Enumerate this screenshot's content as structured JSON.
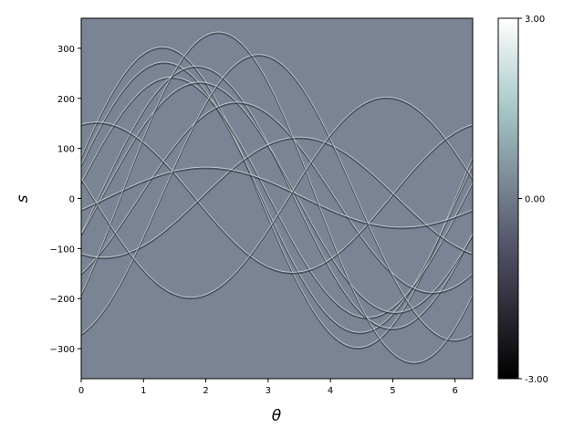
{
  "chart_data": {
    "type": "heatmap",
    "title": "",
    "xlabel": "θ",
    "ylabel": "s",
    "xlim": [
      0,
      6.283
    ],
    "ylim": [
      -360,
      360
    ],
    "x_ticks": [
      0,
      1,
      2,
      3,
      4,
      5,
      6
    ],
    "x_tick_labels": [
      "0",
      "1",
      "2",
      "3",
      "4",
      "5",
      "6"
    ],
    "y_ticks": [
      -300,
      -200,
      -100,
      0,
      100,
      200,
      300
    ],
    "y_tick_labels": [
      "−300",
      "−200",
      "−100",
      "0",
      "100",
      "200",
      "300"
    ],
    "colormap": "bone",
    "colorbar": {
      "range": [
        -3.0,
        3.0
      ],
      "ticks": [
        -3.0,
        0.0,
        3.0
      ],
      "tick_labels": [
        "-3.00",
        "0.00",
        "3.00"
      ]
    },
    "background_value_color": "#7b8494",
    "sinogram_curves": [
      {
        "amplitude": 300,
        "phase": 1.3
      },
      {
        "amplitude": 270,
        "phase": 1.33
      },
      {
        "amplitude": 240,
        "phase": 1.45
      },
      {
        "amplitude": 262,
        "phase": 1.85
      },
      {
        "amplitude": 230,
        "phase": 1.9
      },
      {
        "amplitude": 190,
        "phase": 2.5
      },
      {
        "amplitude": 150,
        "phase": 0.25
      },
      {
        "amplitude": 120,
        "phase": 3.5
      },
      {
        "amplitude": 60,
        "phase": 2.0
      },
      {
        "amplitude": 285,
        "phase": 2.85
      },
      {
        "amplitude": 330,
        "phase": 2.2
      },
      {
        "amplitude": 200,
        "phase": 4.9
      }
    ]
  }
}
